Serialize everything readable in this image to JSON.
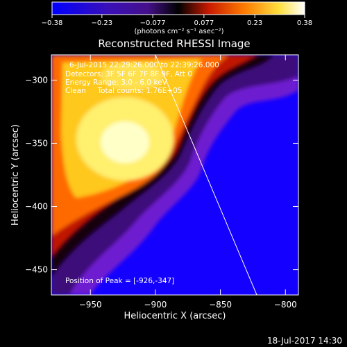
{
  "colorbar": {
    "ticks": [
      "-0.38",
      "-0.23",
      "-0.077",
      "0.077",
      "0.23",
      "0.38"
    ],
    "unit_label": "(photons cm⁻² s⁻¹ asec⁻²)",
    "vmin": -0.38,
    "vmax": 0.38
  },
  "annotations": {
    "time_range": "6-Jul-2015 22:29:26.000 to 22:39:26.000",
    "detectors": "Detectors: 3F 5F 6F 7F 8F 9F, Att 0",
    "energy": "Energy Range: 3.0 - 6.0 keV",
    "method_counts": "Clean     Total counts: 1.76E+05",
    "peak": "Position of Peak = [-926,-347]"
  },
  "footer": {
    "date": "18-Jul-2017 14:30"
  },
  "chart_data": {
    "type": "heatmap",
    "title": "Reconstructed RHESSI Image",
    "xlabel": "Heliocentric X (arcsec)",
    "ylabel": "Heliocentric Y (arcsec)",
    "xlim": [
      -980,
      -790
    ],
    "ylim": [
      -470,
      -280
    ],
    "xticks": [
      -950,
      -900,
      -850,
      -800
    ],
    "yticks": [
      -300,
      -350,
      -400,
      -450
    ],
    "peak": {
      "x": -926,
      "y": -347
    },
    "limb_line": [
      [
        -900,
        -280
      ],
      [
        -822,
        -470
      ]
    ],
    "colormap": [
      "#0000ff",
      "#5a0d9e",
      "#000000",
      "#d22000",
      "#ff8a00",
      "#fff270",
      "#ffffff"
    ]
  }
}
